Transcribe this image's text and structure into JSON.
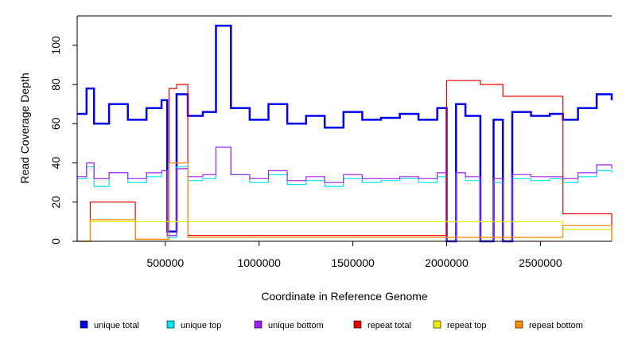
{
  "chart_data": {
    "type": "line",
    "title": "",
    "xlabel": "Coordinate in Reference Genome",
    "ylabel": "Read Coverage Depth",
    "xlim": [
      30000,
      2880000
    ],
    "ylim": [
      0,
      115
    ],
    "x_ticks": [
      500000,
      1000000,
      1500000,
      2000000,
      2500000
    ],
    "x_tick_labels": [
      "500000",
      "1000000",
      "1500000",
      "2000000",
      "2500000"
    ],
    "y_ticks": [
      0,
      20,
      40,
      60,
      80,
      100
    ],
    "y_tick_labels": [
      "0",
      "20",
      "40",
      "60",
      "80",
      "100"
    ],
    "grid": false,
    "legend_position": "bottom",
    "series": [
      {
        "name": "unique total",
        "color": "#0000ee",
        "x": [
          30000,
          80000,
          120000,
          200000,
          300000,
          400000,
          480000,
          510000,
          560000,
          620000,
          700000,
          770000,
          850000,
          950000,
          1050000,
          1150000,
          1250000,
          1350000,
          1450000,
          1550000,
          1650000,
          1750000,
          1850000,
          1950000,
          2000000,
          2050000,
          2100000,
          2180000,
          2250000,
          2300000,
          2350000,
          2450000,
          2550000,
          2620000,
          2700000,
          2800000,
          2880000
        ],
        "values": [
          65,
          78,
          60,
          70,
          62,
          68,
          72,
          5,
          75,
          64,
          66,
          110,
          68,
          62,
          70,
          60,
          64,
          58,
          66,
          62,
          63,
          65,
          62,
          68,
          0,
          70,
          64,
          0,
          62,
          0,
          66,
          64,
          65,
          62,
          68,
          75,
          72
        ]
      },
      {
        "name": "unique top",
        "color": "#00e5ee",
        "x": [
          30000,
          80000,
          120000,
          200000,
          300000,
          400000,
          480000,
          510000,
          560000,
          620000,
          700000,
          770000,
          850000,
          950000,
          1050000,
          1150000,
          1250000,
          1350000,
          1450000,
          1550000,
          1650000,
          1750000,
          1850000,
          1950000,
          2000000,
          2050000,
          2100000,
          2180000,
          2250000,
          2300000,
          2350000,
          2450000,
          2550000,
          2620000,
          2700000,
          2800000,
          2880000
        ],
        "values": [
          32,
          38,
          28,
          35,
          30,
          33,
          36,
          2,
          38,
          31,
          32,
          48,
          34,
          30,
          34,
          29,
          31,
          28,
          32,
          30,
          31,
          32,
          30,
          33,
          0,
          35,
          31,
          0,
          30,
          0,
          32,
          31,
          32,
          30,
          33,
          36,
          35
        ]
      },
      {
        "name": "unique bottom",
        "color": "#a020f0",
        "x": [
          30000,
          80000,
          120000,
          200000,
          300000,
          400000,
          480000,
          510000,
          560000,
          620000,
          700000,
          770000,
          850000,
          950000,
          1050000,
          1150000,
          1250000,
          1350000,
          1450000,
          1550000,
          1650000,
          1750000,
          1850000,
          1950000,
          2000000,
          2050000,
          2100000,
          2180000,
          2250000,
          2300000,
          2350000,
          2450000,
          2550000,
          2620000,
          2700000,
          2800000,
          2880000
        ],
        "values": [
          33,
          40,
          32,
          35,
          32,
          35,
          36,
          3,
          37,
          33,
          34,
          48,
          34,
          32,
          36,
          31,
          33,
          30,
          34,
          32,
          32,
          33,
          32,
          35,
          0,
          35,
          33,
          0,
          32,
          0,
          34,
          33,
          33,
          32,
          35,
          39,
          37
        ]
      },
      {
        "name": "repeat total",
        "color": "#ee0000",
        "x": [
          30000,
          80000,
          100000,
          340000,
          520000,
          560000,
          620000,
          2000000,
          2180000,
          2300000,
          2620000,
          2880000
        ],
        "values": [
          0,
          0,
          20,
          1,
          78,
          80,
          3,
          82,
          80,
          74,
          14,
          0
        ]
      },
      {
        "name": "repeat top",
        "color": "#eeee00",
        "x": [
          30000,
          100000,
          2620000,
          2880000
        ],
        "values": [
          0,
          10,
          6,
          0
        ]
      },
      {
        "name": "repeat bottom",
        "color": "#ff8c00",
        "x": [
          30000,
          100000,
          340000,
          520000,
          560000,
          620000,
          2620000,
          2880000
        ],
        "values": [
          0,
          11,
          1,
          40,
          40,
          2,
          8,
          0
        ]
      }
    ]
  }
}
